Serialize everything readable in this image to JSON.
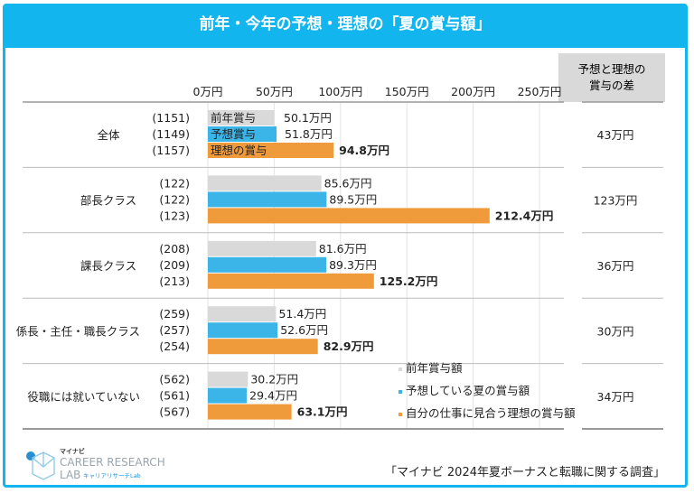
{
  "title": "前年・今年の予想・理想の「夏の賞与額」",
  "diff_header": "予想と理想の\n賞与の差",
  "source": "「マイナビ 2024年夏ボーナスと転職に関する調査」",
  "logo": {
    "brand": "マイナビ",
    "name1": "CAREER RESEARCH",
    "name2": "LAB",
    "sub": "キャリアリサーチLab"
  },
  "chart_data": {
    "type": "bar",
    "orientation": "horizontal",
    "unit": "万円",
    "xlim": [
      0,
      250
    ],
    "ticks": [
      "0万円",
      "50万円",
      "100万円",
      "150万円",
      "200万円",
      "250万円"
    ],
    "tick_values": [
      0,
      50,
      100,
      150,
      200,
      250
    ],
    "grid": true,
    "colors": {
      "前年賞与額": "#d9d9d9",
      "予想している夏の賞与額": "#3bb4e8",
      "自分の仕事に見合う理想の賞与額": "#ef9b3c"
    },
    "series_names": [
      "前年賞与額",
      "予想している夏の賞与額",
      "自分の仕事に見合う理想の賞与額"
    ],
    "inbar_labels": [
      "前年賞与",
      "予想賞与",
      "理想の賞与"
    ],
    "legend_position": "bottom-right",
    "categories": [
      {
        "label": "全体",
        "n": [
          "(1151)",
          "(1149)",
          "(1157)"
        ],
        "values": [
          50.1,
          51.8,
          94.8
        ],
        "labels": [
          "50.1万円",
          "51.8万円",
          "94.8万円"
        ],
        "diff": "43万円"
      },
      {
        "label": "部長クラス",
        "n": [
          "(122)",
          "(122)",
          "(123)"
        ],
        "values": [
          85.6,
          89.5,
          212.4
        ],
        "labels": [
          "85.6万円",
          "89.5万円",
          "212.4万円"
        ],
        "diff": "123万円"
      },
      {
        "label": "課長クラス",
        "n": [
          "(208)",
          "(209)",
          "(213)"
        ],
        "values": [
          81.6,
          89.3,
          125.2
        ],
        "labels": [
          "81.6万円",
          "89.3万円",
          "125.2万円"
        ],
        "diff": "36万円"
      },
      {
        "label": "係長・主任・職長クラス",
        "n": [
          "(259)",
          "(257)",
          "(254)"
        ],
        "values": [
          51.4,
          52.6,
          82.9
        ],
        "labels": [
          "51.4万円",
          "52.6万円",
          "82.9万円"
        ],
        "diff": "30万円"
      },
      {
        "label": "役職には就いていない",
        "n": [
          "(562)",
          "(561)",
          "(567)"
        ],
        "values": [
          30.2,
          29.4,
          63.1
        ],
        "labels": [
          "30.2万円",
          "29.4万円",
          "63.1万円"
        ],
        "diff": "34万円"
      }
    ]
  }
}
